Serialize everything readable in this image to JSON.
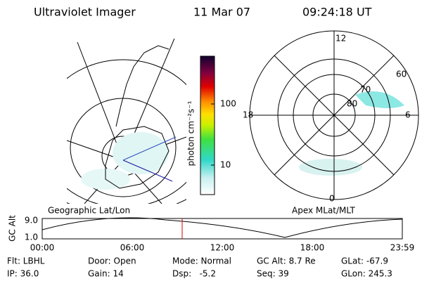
{
  "header": {
    "instrument": "Ultraviolet Imager",
    "date": "11 Mar 07",
    "time": "09:24:18 UT"
  },
  "colorbar": {
    "label": "photon cm⁻²s⁻¹",
    "ticks": [
      "100",
      "10"
    ]
  },
  "polar_plot": {
    "mlt_labels": [
      "12",
      "18",
      "6",
      "0"
    ],
    "lat_labels": [
      "60",
      "70",
      "80"
    ]
  },
  "map_titles": [
    "Geographic Lat/Lon",
    "Apex MLat/MLT"
  ],
  "altitude_plot": {
    "ylabel": "GC Alt",
    "yticks": [
      "9.0",
      "1.0"
    ],
    "xticks": [
      "00:00",
      "06:00",
      "12:00",
      "18:00",
      "23:59"
    ]
  },
  "info": [
    [
      "Flt: LBHL",
      "Door: Open",
      "Mode: Normal",
      "GC Alt: 8.7 Re",
      "GLat: -67.9"
    ],
    [
      "IP: 36.0",
      "Gain: 14",
      "Dsp:   -5.2",
      "Seq: 39",
      "GLon: 245.3"
    ]
  ]
}
